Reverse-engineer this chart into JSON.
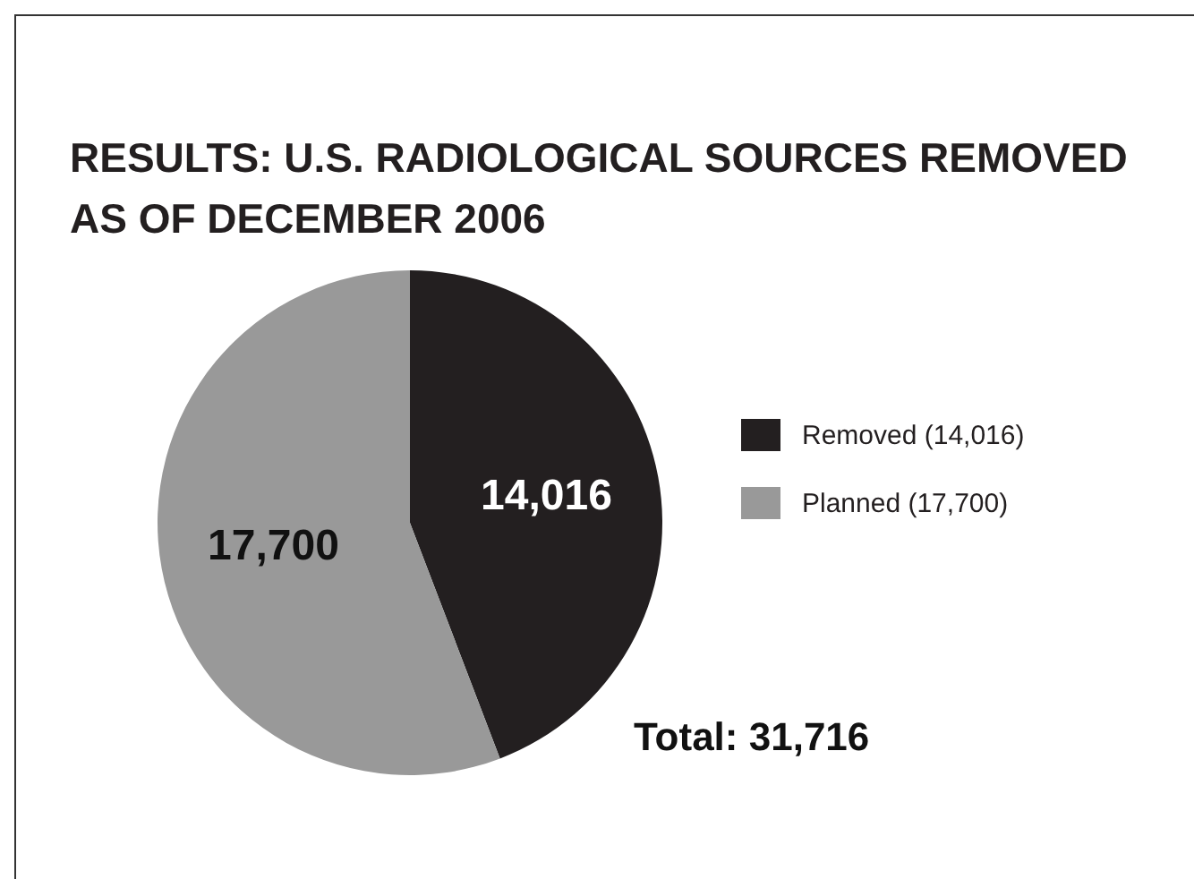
{
  "chart_data": {
    "type": "pie",
    "title": "RESULTS: U.S. RADIOLOGICAL SOURCES REMOVED AS OF DECEMBER 2006",
    "categories": [
      "Removed (14,016)",
      "Planned (17,700)"
    ],
    "values": [
      14016,
      17700
    ],
    "colors": [
      "#231f20",
      "#999999"
    ],
    "value_labels": [
      "14,016",
      "17,700"
    ],
    "legend": "right",
    "annotations": [
      "Total: 31,716"
    ]
  }
}
